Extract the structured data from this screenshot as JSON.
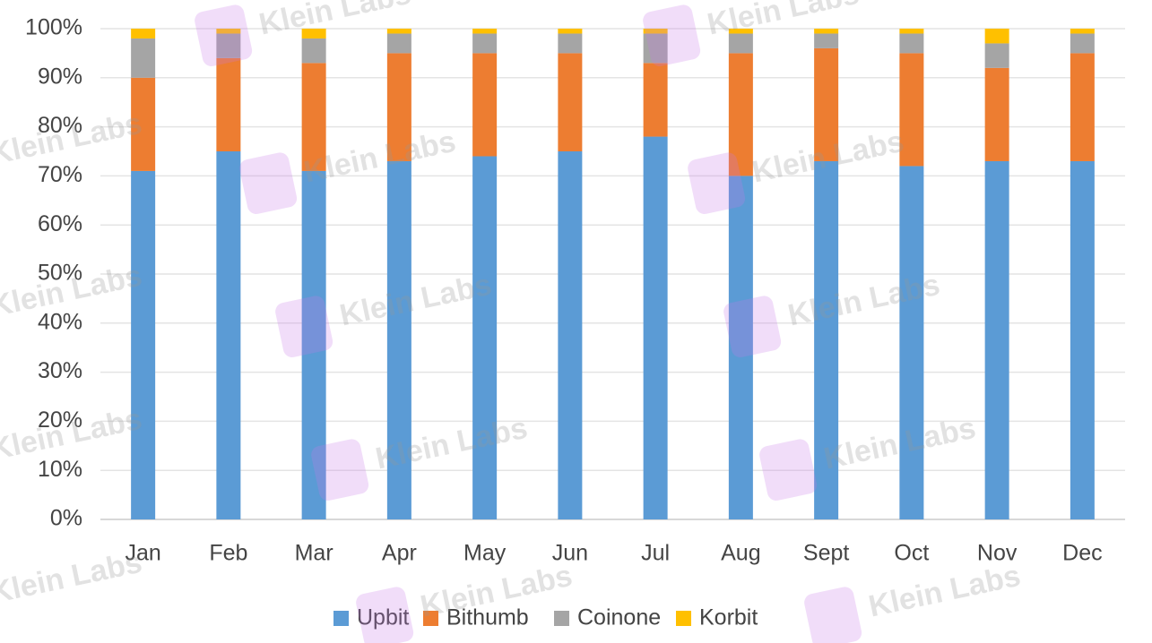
{
  "chart_data": {
    "type": "stacked_bar",
    "categories": [
      "Jan",
      "Feb",
      "Mar",
      "Apr",
      "May",
      "Jun",
      "Jul",
      "Aug",
      "Sept",
      "Oct",
      "Nov",
      "Dec"
    ],
    "series": [
      {
        "name": "Upbit",
        "color": "#5b9bd5",
        "values": [
          71,
          75,
          71,
          73,
          74,
          75,
          78,
          70,
          73,
          72,
          73,
          73
        ]
      },
      {
        "name": "Bithumb",
        "color": "#ed7d31",
        "values": [
          19,
          19,
          22,
          22,
          21,
          20,
          15,
          25,
          23,
          23,
          19,
          22
        ]
      },
      {
        "name": "Coinone",
        "color": "#a5a5a5",
        "values": [
          8,
          5,
          5,
          4,
          4,
          4,
          6,
          4,
          3,
          4,
          5,
          4
        ]
      },
      {
        "name": "Korbit",
        "color": "#ffc000",
        "values": [
          2,
          1,
          2,
          1,
          1,
          1,
          1,
          1,
          1,
          1,
          3,
          1
        ]
      }
    ],
    "ylim": [
      0,
      100
    ],
    "yticks": [
      {
        "value": 0,
        "label": "0%"
      },
      {
        "value": 10,
        "label": "10%"
      },
      {
        "value": 20,
        "label": "20%"
      },
      {
        "value": 30,
        "label": "30%"
      },
      {
        "value": 40,
        "label": "40%"
      },
      {
        "value": 50,
        "label": "50%"
      },
      {
        "value": 60,
        "label": "60%"
      },
      {
        "value": 70,
        "label": "70%"
      },
      {
        "value": 80,
        "label": "80%"
      },
      {
        "value": 90,
        "label": "90%"
      },
      {
        "value": 100,
        "label": "100%"
      }
    ],
    "grid": true,
    "legend": "bottom",
    "watermark": "Klein Labs"
  }
}
